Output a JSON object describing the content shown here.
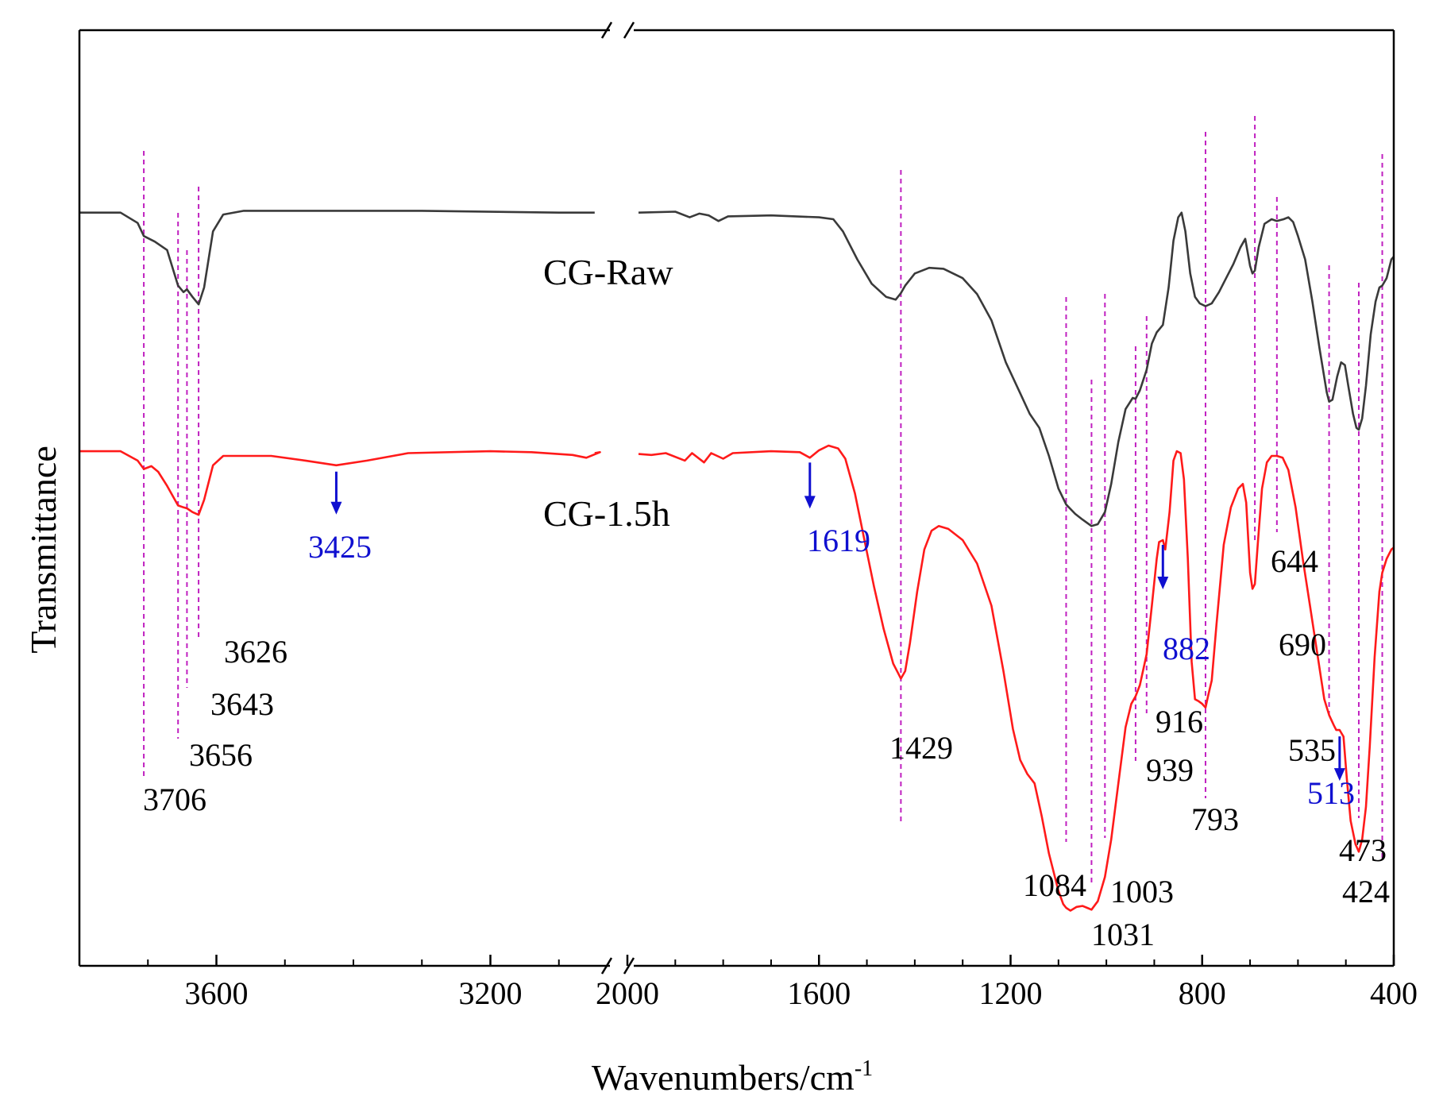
{
  "chart_data": {
    "type": "line",
    "title": "",
    "xlabel": "Wavenumbers/cm",
    "xlabel_superscript": "-1",
    "ylabel": "Transmittance",
    "x_axis_reversed": true,
    "x_axis_break": [
      3000,
      2000
    ],
    "xlim": [
      3800,
      400
    ],
    "ylim": [
      0,
      100
    ],
    "grid": false,
    "y_ticks_shown": false,
    "colors": {
      "CG-Raw": "#3a3a3a",
      "CG-1.5h": "#ff1a1a",
      "marker": "#c020c0",
      "arrow": "#1010d0",
      "label": "#000000"
    },
    "x_ticks": [
      {
        "value": 3600,
        "label": "3600"
      },
      {
        "value": 3200,
        "label": "3200"
      },
      {
        "value": 2000,
        "label": "2000"
      },
      {
        "value": 1600,
        "label": "1600"
      },
      {
        "value": 1200,
        "label": "1200"
      },
      {
        "value": 800,
        "label": "800"
      },
      {
        "value": 400,
        "label": "400"
      }
    ],
    "minor_x_ticks": [
      3700,
      3500,
      3400,
      3300,
      3100,
      1900,
      1800,
      1700,
      1500,
      1400,
      1300,
      1100,
      1000,
      900,
      700,
      600,
      500
    ],
    "series": [
      {
        "name": "CG-Raw",
        "label": "CG-Raw",
        "color": "#3a3a3a",
        "points": [
          [
            3800,
            80.5
          ],
          [
            3740,
            80.5
          ],
          [
            3715,
            79.4
          ],
          [
            3706,
            78.0
          ],
          [
            3690,
            77.4
          ],
          [
            3672,
            76.5
          ],
          [
            3656,
            72.7
          ],
          [
            3648,
            72.0
          ],
          [
            3643,
            72.3
          ],
          [
            3635,
            71.5
          ],
          [
            3626,
            70.7
          ],
          [
            3618,
            72.5
          ],
          [
            3605,
            78.5
          ],
          [
            3590,
            80.3
          ],
          [
            3560,
            80.7
          ],
          [
            3300,
            80.7
          ],
          [
            3100,
            80.5
          ],
          [
            3020,
            80.5
          ],
          [
            2000,
            80.5
          ],
          [
            1900,
            80.6
          ],
          [
            1870,
            80.0
          ],
          [
            1850,
            80.4
          ],
          [
            1830,
            80.2
          ],
          [
            1810,
            79.6
          ],
          [
            1790,
            80.1
          ],
          [
            1700,
            80.2
          ],
          [
            1600,
            80.0
          ],
          [
            1570,
            79.8
          ],
          [
            1550,
            78.5
          ],
          [
            1520,
            75.5
          ],
          [
            1490,
            72.9
          ],
          [
            1460,
            71.5
          ],
          [
            1440,
            71.2
          ],
          [
            1429,
            71.9
          ],
          [
            1420,
            72.7
          ],
          [
            1400,
            74.0
          ],
          [
            1370,
            74.6
          ],
          [
            1340,
            74.5
          ],
          [
            1300,
            73.5
          ],
          [
            1270,
            71.8
          ],
          [
            1240,
            69.0
          ],
          [
            1210,
            64.5
          ],
          [
            1180,
            61.2
          ],
          [
            1160,
            59.0
          ],
          [
            1140,
            57.5
          ],
          [
            1120,
            54.5
          ],
          [
            1100,
            51.0
          ],
          [
            1084,
            49.3
          ],
          [
            1065,
            48.3
          ],
          [
            1050,
            47.7
          ],
          [
            1031,
            47.0
          ],
          [
            1018,
            47.2
          ],
          [
            1003,
            48.5
          ],
          [
            990,
            51.5
          ],
          [
            975,
            56.0
          ],
          [
            960,
            59.5
          ],
          [
            945,
            60.7
          ],
          [
            939,
            60.6
          ],
          [
            930,
            61.5
          ],
          [
            916,
            63.7
          ],
          [
            905,
            66.5
          ],
          [
            895,
            67.7
          ],
          [
            882,
            68.5
          ],
          [
            870,
            72.5
          ],
          [
            860,
            77.5
          ],
          [
            850,
            80.0
          ],
          [
            843,
            80.5
          ],
          [
            835,
            78.5
          ],
          [
            825,
            74.0
          ],
          [
            815,
            71.5
          ],
          [
            805,
            70.8
          ],
          [
            793,
            70.5
          ],
          [
            780,
            70.8
          ],
          [
            765,
            72.0
          ],
          [
            750,
            73.5
          ],
          [
            735,
            75.0
          ],
          [
            720,
            76.8
          ],
          [
            710,
            77.7
          ],
          [
            700,
            74.8
          ],
          [
            695,
            74.0
          ],
          [
            690,
            74.3
          ],
          [
            682,
            76.8
          ],
          [
            670,
            79.3
          ],
          [
            655,
            79.8
          ],
          [
            644,
            79.6
          ],
          [
            630,
            79.8
          ],
          [
            620,
            80.0
          ],
          [
            610,
            79.5
          ],
          [
            600,
            78.0
          ],
          [
            585,
            75.5
          ],
          [
            570,
            71.0
          ],
          [
            555,
            66.0
          ],
          [
            540,
            61.3
          ],
          [
            535,
            60.3
          ],
          [
            528,
            60.5
          ],
          [
            518,
            63.0
          ],
          [
            510,
            64.5
          ],
          [
            502,
            64.2
          ],
          [
            495,
            62.0
          ],
          [
            485,
            59.0
          ],
          [
            478,
            57.5
          ],
          [
            473,
            57.3
          ],
          [
            466,
            58.5
          ],
          [
            458,
            62.0
          ],
          [
            448,
            67.5
          ],
          [
            438,
            71.0
          ],
          [
            430,
            72.5
          ],
          [
            424,
            72.7
          ],
          [
            415,
            73.5
          ],
          [
            405,
            75.5
          ],
          [
            400,
            75.8
          ]
        ]
      },
      {
        "name": "CG-1.5h",
        "label": "CG-1.5h",
        "color": "#ff1a1a",
        "points": [
          [
            3800,
            55.0
          ],
          [
            3740,
            55.0
          ],
          [
            3715,
            54.0
          ],
          [
            3706,
            53.1
          ],
          [
            3695,
            53.4
          ],
          [
            3685,
            52.8
          ],
          [
            3672,
            51.3
          ],
          [
            3656,
            49.2
          ],
          [
            3648,
            49.0
          ],
          [
            3643,
            48.9
          ],
          [
            3635,
            48.5
          ],
          [
            3626,
            48.2
          ],
          [
            3618,
            49.8
          ],
          [
            3605,
            53.5
          ],
          [
            3590,
            54.5
          ],
          [
            3520,
            54.5
          ],
          [
            3470,
            54.0
          ],
          [
            3425,
            53.5
          ],
          [
            3380,
            54.0
          ],
          [
            3320,
            54.8
          ],
          [
            3200,
            55.0
          ],
          [
            3140,
            54.9
          ],
          [
            3080,
            54.6
          ],
          [
            3060,
            54.3
          ],
          [
            3040,
            54.9
          ],
          [
            3020,
            54.8
          ],
          [
            2000,
            54.7
          ],
          [
            1950,
            54.6
          ],
          [
            1920,
            54.8
          ],
          [
            1880,
            54.0
          ],
          [
            1865,
            54.8
          ],
          [
            1840,
            53.8
          ],
          [
            1825,
            54.8
          ],
          [
            1800,
            54.2
          ],
          [
            1780,
            54.8
          ],
          [
            1700,
            55.0
          ],
          [
            1640,
            54.9
          ],
          [
            1619,
            54.3
          ],
          [
            1600,
            55.1
          ],
          [
            1580,
            55.6
          ],
          [
            1560,
            55.3
          ],
          [
            1545,
            54.2
          ],
          [
            1525,
            50.5
          ],
          [
            1505,
            45.5
          ],
          [
            1485,
            40.5
          ],
          [
            1465,
            36.0
          ],
          [
            1445,
            32.3
          ],
          [
            1435,
            31.3
          ],
          [
            1429,
            30.7
          ],
          [
            1420,
            31.5
          ],
          [
            1410,
            34.5
          ],
          [
            1395,
            40.0
          ],
          [
            1380,
            44.5
          ],
          [
            1365,
            46.5
          ],
          [
            1350,
            47.0
          ],
          [
            1330,
            46.7
          ],
          [
            1300,
            45.5
          ],
          [
            1270,
            43.0
          ],
          [
            1240,
            38.5
          ],
          [
            1215,
            31.5
          ],
          [
            1195,
            25.3
          ],
          [
            1180,
            22.0
          ],
          [
            1165,
            20.5
          ],
          [
            1150,
            19.5
          ],
          [
            1135,
            16.0
          ],
          [
            1120,
            12.0
          ],
          [
            1100,
            8.0
          ],
          [
            1090,
            6.6
          ],
          [
            1084,
            6.2
          ],
          [
            1075,
            5.9
          ],
          [
            1062,
            6.3
          ],
          [
            1050,
            6.4
          ],
          [
            1040,
            6.2
          ],
          [
            1031,
            6.0
          ],
          [
            1018,
            6.9
          ],
          [
            1003,
            9.5
          ],
          [
            990,
            13.5
          ],
          [
            975,
            19.5
          ],
          [
            960,
            25.5
          ],
          [
            948,
            28.0
          ],
          [
            939,
            28.8
          ],
          [
            930,
            30.0
          ],
          [
            916,
            33.3
          ],
          [
            905,
            38.5
          ],
          [
            895,
            43.5
          ],
          [
            890,
            45.3
          ],
          [
            882,
            45.5
          ],
          [
            877,
            44.5
          ],
          [
            868,
            48.5
          ],
          [
            860,
            54.0
          ],
          [
            853,
            55.0
          ],
          [
            845,
            54.8
          ],
          [
            838,
            52.0
          ],
          [
            830,
            43.5
          ],
          [
            822,
            32.5
          ],
          [
            815,
            28.5
          ],
          [
            808,
            28.3
          ],
          [
            800,
            28.0
          ],
          [
            793,
            27.6
          ],
          [
            787,
            29.0
          ],
          [
            780,
            30.5
          ],
          [
            770,
            36.5
          ],
          [
            755,
            45.0
          ],
          [
            740,
            49.0
          ],
          [
            725,
            51.0
          ],
          [
            715,
            51.5
          ],
          [
            708,
            49.5
          ],
          [
            700,
            42.0
          ],
          [
            695,
            40.3
          ],
          [
            690,
            40.8
          ],
          [
            684,
            45.0
          ],
          [
            675,
            51.0
          ],
          [
            665,
            53.8
          ],
          [
            655,
            54.5
          ],
          [
            644,
            54.5
          ],
          [
            632,
            54.3
          ],
          [
            620,
            53.0
          ],
          [
            605,
            49.0
          ],
          [
            590,
            43.5
          ],
          [
            575,
            38.5
          ],
          [
            560,
            33.5
          ],
          [
            545,
            28.5
          ],
          [
            535,
            26.8
          ],
          [
            525,
            25.7
          ],
          [
            520,
            25.2
          ],
          [
            513,
            25.2
          ],
          [
            505,
            24.5
          ],
          [
            498,
            20.0
          ],
          [
            490,
            15.5
          ],
          [
            480,
            13.0
          ],
          [
            473,
            12.2
          ],
          [
            466,
            13.5
          ],
          [
            458,
            17.0
          ],
          [
            450,
            23.5
          ],
          [
            440,
            33.0
          ],
          [
            430,
            40.0
          ],
          [
            424,
            42.0
          ],
          [
            415,
            43.5
          ],
          [
            405,
            44.5
          ],
          [
            400,
            44.7
          ]
        ]
      }
    ],
    "reference_lines": [
      {
        "value": 3706,
        "label": "3706"
      },
      {
        "value": 3656,
        "label": "3656"
      },
      {
        "value": 3643,
        "label": "3643"
      },
      {
        "value": 3626,
        "label": "3626"
      },
      {
        "value": 1429,
        "label": "1429"
      },
      {
        "value": 1084,
        "label": "1084"
      },
      {
        "value": 1031,
        "label": "1031"
      },
      {
        "value": 1003,
        "label": "1003"
      },
      {
        "value": 939,
        "label": "939"
      },
      {
        "value": 916,
        "label": "916"
      },
      {
        "value": 793,
        "label": "793"
      },
      {
        "value": 690,
        "label": "690"
      },
      {
        "value": 644,
        "label": "644"
      },
      {
        "value": 535,
        "label": "535"
      },
      {
        "value": 473,
        "label": "473"
      },
      {
        "value": 424,
        "label": "424"
      }
    ],
    "arrow_annotations": [
      {
        "value": 3425,
        "label": "3425"
      },
      {
        "value": 1619,
        "label": "1619"
      },
      {
        "value": 882,
        "label": "882"
      },
      {
        "value": 513,
        "label": "513"
      }
    ]
  }
}
